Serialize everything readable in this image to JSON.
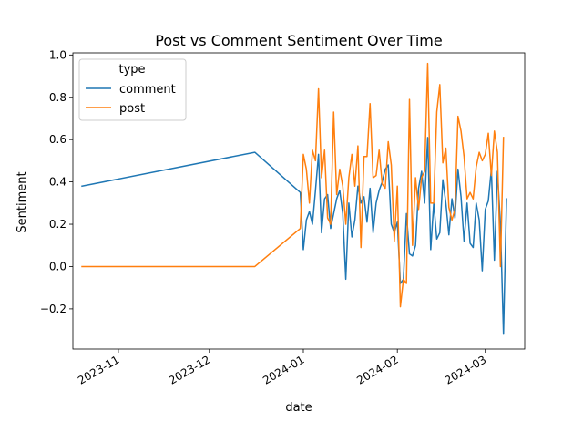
{
  "chart_data": {
    "type": "line",
    "title": "Post vs Comment Sentiment Over Time",
    "xlabel": "date",
    "ylabel": "Sentiment",
    "xlim": [
      "2023-10-17",
      "2024-03-14"
    ],
    "ylim": [
      -0.39,
      1.01
    ],
    "grid": false,
    "legend": {
      "title": "type",
      "position": "top-left"
    },
    "x_ticks": [
      {
        "date": "2023-11-01",
        "label": "2023-11"
      },
      {
        "date": "2023-12-01",
        "label": "2023-12"
      },
      {
        "date": "2024-01-01",
        "label": "2024-01"
      },
      {
        "date": "2024-02-01",
        "label": "2024-02"
      },
      {
        "date": "2024-03-01",
        "label": "2024-03"
      }
    ],
    "y_ticks": [
      {
        "value": -0.2,
        "label": "−0.2"
      },
      {
        "value": 0.0,
        "label": "0.0"
      },
      {
        "value": 0.2,
        "label": "0.2"
      },
      {
        "value": 0.4,
        "label": "0.4"
      },
      {
        "value": 0.6,
        "label": "0.6"
      },
      {
        "value": 0.8,
        "label": "0.8"
      },
      {
        "value": 1.0,
        "label": "1.0"
      }
    ],
    "series": [
      {
        "name": "comment",
        "color": "#1f77b4",
        "points": [
          [
            "2023-10-20",
            0.38
          ],
          [
            "2023-12-16",
            0.54
          ],
          [
            "2023-12-31",
            0.35
          ],
          [
            "2024-01-01",
            0.08
          ],
          [
            "2024-01-02",
            0.22
          ],
          [
            "2024-01-03",
            0.26
          ],
          [
            "2024-01-04",
            0.2
          ],
          [
            "2024-01-05",
            0.36
          ],
          [
            "2024-01-06",
            0.53
          ],
          [
            "2024-01-07",
            0.16
          ],
          [
            "2024-01-08",
            0.32
          ],
          [
            "2024-01-09",
            0.34
          ],
          [
            "2024-01-10",
            0.18
          ],
          [
            "2024-01-11",
            0.25
          ],
          [
            "2024-01-12",
            0.32
          ],
          [
            "2024-01-13",
            0.36
          ],
          [
            "2024-01-14",
            0.25
          ],
          [
            "2024-01-15",
            -0.06
          ],
          [
            "2024-01-16",
            0.3
          ],
          [
            "2024-01-17",
            0.14
          ],
          [
            "2024-01-18",
            0.22
          ],
          [
            "2024-01-19",
            0.38
          ],
          [
            "2024-01-20",
            0.3
          ],
          [
            "2024-01-21",
            0.33
          ],
          [
            "2024-01-22",
            0.21
          ],
          [
            "2024-01-23",
            0.37
          ],
          [
            "2024-01-24",
            0.16
          ],
          [
            "2024-01-25",
            0.3
          ],
          [
            "2024-01-26",
            0.36
          ],
          [
            "2024-01-27",
            0.4
          ],
          [
            "2024-01-28",
            0.46
          ],
          [
            "2024-01-29",
            0.48
          ],
          [
            "2024-01-30",
            0.2
          ],
          [
            "2024-01-31",
            0.16
          ],
          [
            "2024-02-01",
            0.21
          ],
          [
            "2024-02-02",
            -0.08
          ],
          [
            "2024-02-03",
            -0.06
          ],
          [
            "2024-02-04",
            0.25
          ],
          [
            "2024-02-05",
            0.06
          ],
          [
            "2024-02-06",
            0.05
          ],
          [
            "2024-02-07",
            0.1
          ],
          [
            "2024-02-08",
            0.37
          ],
          [
            "2024-02-09",
            0.45
          ],
          [
            "2024-02-10",
            0.3
          ],
          [
            "2024-02-11",
            0.61
          ],
          [
            "2024-02-12",
            0.08
          ],
          [
            "2024-02-13",
            0.3
          ],
          [
            "2024-02-14",
            0.13
          ],
          [
            "2024-02-15",
            0.16
          ],
          [
            "2024-02-16",
            0.41
          ],
          [
            "2024-02-17",
            0.3
          ],
          [
            "2024-02-18",
            0.15
          ],
          [
            "2024-02-19",
            0.32
          ],
          [
            "2024-02-20",
            0.23
          ],
          [
            "2024-02-21",
            0.46
          ],
          [
            "2024-02-22",
            0.33
          ],
          [
            "2024-02-23",
            0.12
          ],
          [
            "2024-02-24",
            0.3
          ],
          [
            "2024-02-25",
            0.11
          ],
          [
            "2024-02-26",
            0.09
          ],
          [
            "2024-02-27",
            0.3
          ],
          [
            "2024-02-28",
            0.22
          ],
          [
            "2024-02-29",
            -0.02
          ],
          [
            "2024-03-01",
            0.27
          ],
          [
            "2024-03-02",
            0.31
          ],
          [
            "2024-03-03",
            0.46
          ],
          [
            "2024-03-04",
            0.03
          ],
          [
            "2024-03-05",
            0.45
          ],
          [
            "2024-03-06",
            0.2
          ],
          [
            "2024-03-07",
            -0.32
          ],
          [
            "2024-03-08",
            0.32
          ]
        ]
      },
      {
        "name": "post",
        "color": "#ff7f0e",
        "points": [
          [
            "2023-10-20",
            0.0
          ],
          [
            "2023-12-16",
            0.0
          ],
          [
            "2023-12-31",
            0.18
          ],
          [
            "2024-01-01",
            0.53
          ],
          [
            "2024-01-02",
            0.46
          ],
          [
            "2024-01-03",
            0.3
          ],
          [
            "2024-01-04",
            0.55
          ],
          [
            "2024-01-05",
            0.5
          ],
          [
            "2024-01-06",
            0.84
          ],
          [
            "2024-01-07",
            0.42
          ],
          [
            "2024-01-08",
            0.55
          ],
          [
            "2024-01-09",
            0.23
          ],
          [
            "2024-01-10",
            0.2
          ],
          [
            "2024-01-11",
            0.73
          ],
          [
            "2024-01-12",
            0.34
          ],
          [
            "2024-01-13",
            0.46
          ],
          [
            "2024-01-14",
            0.38
          ],
          [
            "2024-01-15",
            0.2
          ],
          [
            "2024-01-16",
            0.42
          ],
          [
            "2024-01-17",
            0.53
          ],
          [
            "2024-01-18",
            0.38
          ],
          [
            "2024-01-19",
            0.57
          ],
          [
            "2024-01-20",
            0.09
          ],
          [
            "2024-01-21",
            0.52
          ],
          [
            "2024-01-22",
            0.52
          ],
          [
            "2024-01-23",
            0.77
          ],
          [
            "2024-01-24",
            0.42
          ],
          [
            "2024-01-25",
            0.43
          ],
          [
            "2024-01-26",
            0.55
          ],
          [
            "2024-01-27",
            0.39
          ],
          [
            "2024-01-28",
            0.37
          ],
          [
            "2024-01-29",
            0.59
          ],
          [
            "2024-01-30",
            0.48
          ],
          [
            "2024-01-31",
            0.12
          ],
          [
            "2024-02-01",
            0.38
          ],
          [
            "2024-02-02",
            -0.19
          ],
          [
            "2024-02-03",
            -0.06
          ],
          [
            "2024-02-04",
            -0.08
          ],
          [
            "2024-02-05",
            0.79
          ],
          [
            "2024-02-06",
            0.1
          ],
          [
            "2024-02-07",
            0.42
          ],
          [
            "2024-02-08",
            0.27
          ],
          [
            "2024-02-09",
            0.42
          ],
          [
            "2024-02-10",
            0.45
          ],
          [
            "2024-02-11",
            0.96
          ],
          [
            "2024-02-12",
            0.3
          ],
          [
            "2024-02-13",
            0.3
          ],
          [
            "2024-02-14",
            0.73
          ],
          [
            "2024-02-15",
            0.86
          ],
          [
            "2024-02-16",
            0.49
          ],
          [
            "2024-02-17",
            0.56
          ],
          [
            "2024-02-18",
            0.28
          ],
          [
            "2024-02-19",
            0.22
          ],
          [
            "2024-02-20",
            0.27
          ],
          [
            "2024-02-21",
            0.71
          ],
          [
            "2024-02-22",
            0.64
          ],
          [
            "2024-02-23",
            0.52
          ],
          [
            "2024-02-24",
            0.32
          ],
          [
            "2024-02-25",
            0.35
          ],
          [
            "2024-02-26",
            0.32
          ],
          [
            "2024-02-27",
            0.47
          ],
          [
            "2024-02-28",
            0.54
          ],
          [
            "2024-02-29",
            0.5
          ],
          [
            "2024-03-01",
            0.53
          ],
          [
            "2024-03-02",
            0.63
          ],
          [
            "2024-03-03",
            0.43
          ],
          [
            "2024-03-04",
            0.64
          ],
          [
            "2024-03-05",
            0.54
          ],
          [
            "2024-03-06",
            0.0
          ],
          [
            "2024-03-07",
            0.61
          ]
        ]
      }
    ]
  }
}
